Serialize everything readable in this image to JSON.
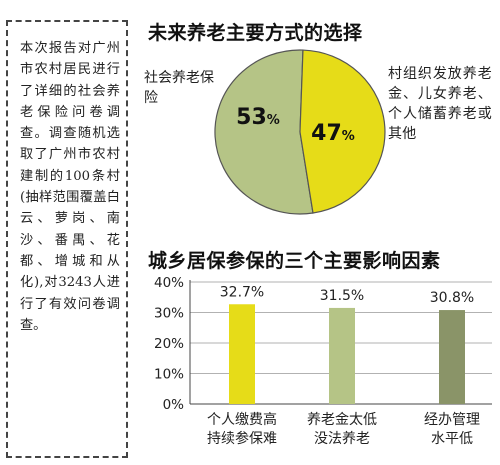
{
  "sidebar": {
    "text": "本次报告对广州市农村居民进行了详细的社会养老保险问卷调查。调查随机选取了广州市农村建制的100条村(抽样范围覆盖白云、萝岗、南沙、番禺、花都、增城和从化),对3243人进行了有效问卷调查。"
  },
  "chart_data": [
    {
      "type": "pie",
      "title": "未来养老主要方式的选择",
      "slices": [
        {
          "label": "社会养老保险",
          "value": 53,
          "value_label": "53%",
          "color": "#b5c486"
        },
        {
          "label": "村组织发放养老金、儿女养老、个人储蓄养老或其他",
          "value": 47,
          "value_label": "47%",
          "color": "#e6dc18"
        }
      ]
    },
    {
      "type": "bar",
      "title": "城乡居保参保的三个主要影响因素",
      "categories": [
        "个人缴费高持续参保难",
        "养老金太低没法养老",
        "经办管理水平低"
      ],
      "values": [
        32.7,
        31.5,
        30.8
      ],
      "value_labels": [
        "32.7%",
        "31.5%",
        "30.8%"
      ],
      "colors": [
        "#e6dc18",
        "#b5c486",
        "#8a9468"
      ],
      "ylim": [
        0,
        40
      ],
      "yticks": [
        "0%",
        "10%",
        "20%",
        "30%",
        "40%"
      ],
      "category_lines": [
        [
          "个人缴费高",
          "持续参保难"
        ],
        [
          "养老金太低",
          "没法养老"
        ],
        [
          "经办管理",
          "水平低"
        ]
      ]
    }
  ]
}
